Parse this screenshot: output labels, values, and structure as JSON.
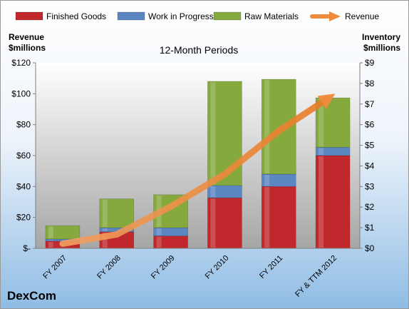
{
  "company": "DexCom",
  "chart_data": {
    "type": "bar",
    "stacked": true,
    "title": "12-Month Periods",
    "categories": [
      "FY 2007",
      "FY 2008",
      "FY 2009",
      "FY 2010",
      "FY 2011",
      "FY & TTM 2012"
    ],
    "y_left": {
      "label_line1": "Revenue",
      "label_line2": "$millions",
      "range": [
        0,
        120
      ],
      "ticks": [
        {
          "value": 0,
          "label": "$-"
        },
        {
          "value": 20,
          "label": "$20"
        },
        {
          "value": 40,
          "label": "$40"
        },
        {
          "value": 60,
          "label": "$60"
        },
        {
          "value": 80,
          "label": "$80"
        },
        {
          "value": 100,
          "label": "$100"
        },
        {
          "value": 120,
          "label": "$120"
        }
      ]
    },
    "y_right": {
      "label_line1": "Inventory",
      "label_line2": "$millions",
      "range": [
        0,
        9
      ],
      "ticks": [
        {
          "value": 0,
          "label": "$0"
        },
        {
          "value": 1,
          "label": "$1"
        },
        {
          "value": 2,
          "label": "$2"
        },
        {
          "value": 3,
          "label": "$3"
        },
        {
          "value": 4,
          "label": "$4"
        },
        {
          "value": 5,
          "label": "$5"
        },
        {
          "value": 6,
          "label": "$6"
        },
        {
          "value": 7,
          "label": "$7"
        },
        {
          "value": 8,
          "label": "$8"
        },
        {
          "value": 9,
          "label": "$9"
        }
      ]
    },
    "bar_series": [
      {
        "name": "Finished Goods",
        "color": "#c0282d",
        "axis": "right",
        "values": [
          0.35,
          0.8,
          0.6,
          2.45,
          3.0,
          4.5
        ]
      },
      {
        "name": "Work in Progress",
        "color": "#5b86c2",
        "axis": "right",
        "values": [
          0.1,
          0.2,
          0.4,
          0.6,
          0.6,
          0.4
        ]
      },
      {
        "name": "Raw Materials",
        "color": "#86a93e",
        "axis": "right",
        "values": [
          0.65,
          1.4,
          1.6,
          5.05,
          4.6,
          2.4
        ]
      }
    ],
    "line_series": {
      "name": "Revenue",
      "color": "#ef8b3c",
      "axis": "left",
      "values": [
        3,
        9,
        27,
        48,
        76,
        99
      ]
    },
    "grid": false,
    "legend": "top"
  }
}
